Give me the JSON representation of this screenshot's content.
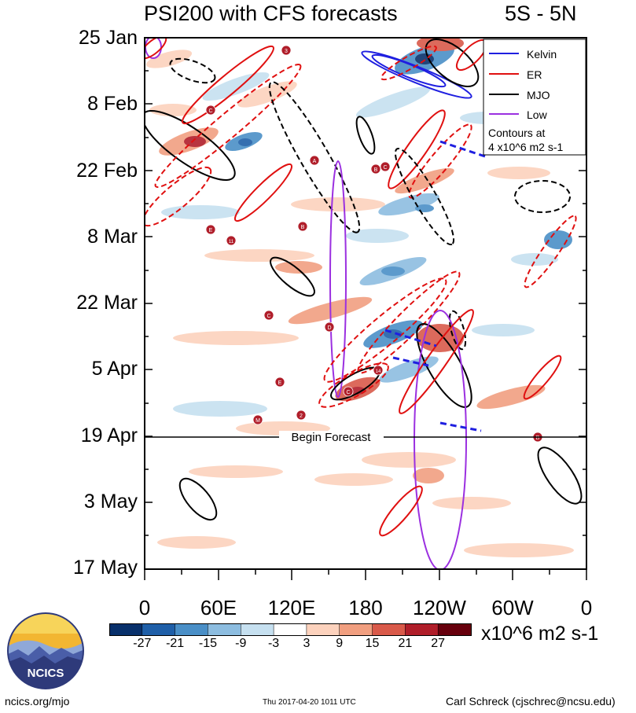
{
  "chart_data": {
    "type": "heatmap",
    "title": "PSI200 with CFS forecasts",
    "region": "5S - 5N",
    "y_tick_labels": [
      "25 Jan",
      "8 Feb",
      "22 Feb",
      "8 Mar",
      "22 Mar",
      "5 Apr",
      "19 Apr",
      "3 May",
      "17 May"
    ],
    "x_tick_labels": [
      "0",
      "60E",
      "120E",
      "180",
      "120W",
      "60W",
      "0"
    ],
    "forecast_label": "Begin Forecast",
    "legend": {
      "entries": [
        {
          "name": "Kelvin",
          "color": "#1f1fe0"
        },
        {
          "name": "ER",
          "color": "#e01010"
        },
        {
          "name": "MJO",
          "color": "#000000"
        },
        {
          "name": "Low",
          "color": "#9b30e0"
        }
      ],
      "note_line1": "Contours at",
      "note_line2": "4 x10^6 m2 s-1"
    },
    "colorbar": {
      "labels": [
        "-27",
        "-21",
        "-15",
        "-9",
        "-3",
        "3",
        "9",
        "15",
        "21",
        "27"
      ],
      "colors": [
        "#08306b",
        "#1f5fa8",
        "#4a8fc7",
        "#8dbde0",
        "#c6e0f0",
        "#ffffff",
        "#fcd2bd",
        "#f19f80",
        "#d95a4a",
        "#b01e2a",
        "#67000d"
      ],
      "units": "x10^6 m2 s-1"
    },
    "storm_markers": [
      "3",
      "C",
      "A",
      "B",
      "E",
      "11",
      "B",
      "C",
      "D",
      "E",
      "C",
      "14",
      "2",
      "M",
      "C",
      "B"
    ]
  },
  "footer": {
    "logo_text": "NCICS",
    "site": "ncics.org/mjo",
    "timestamp": "Thu 2017-04-20 1011 UTC",
    "author": "Carl Schreck (cjschrec@ncsu.edu)"
  }
}
